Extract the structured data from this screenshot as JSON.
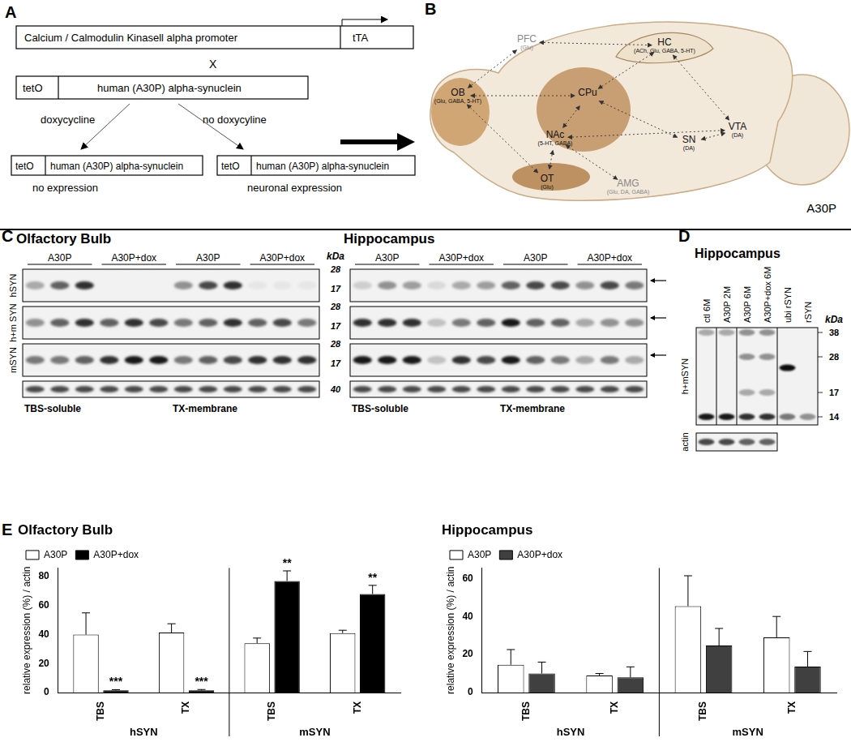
{
  "panel_a": {
    "letter": "A",
    "promoter": "Calcium / Calmodulin Kinasell alpha promoter",
    "transactivator": "tTA",
    "cross": "X",
    "operator": "tetO",
    "transgene": "human (A30P) alpha-synuclein",
    "with_dox": "doxycycline",
    "without_dox": "no doxycyline",
    "off_state": "no expression",
    "on_state": "neuronal expression"
  },
  "panel_b": {
    "letter": "B",
    "caption": "A30P",
    "regions": [
      {
        "label": "PFC",
        "sub": "(Glu)"
      },
      {
        "label": "OB",
        "sub": "(Glu, GABA, 5-HT)"
      },
      {
        "label": "HC",
        "sub": "(ACh, Glu, GABA, 5-HT)"
      },
      {
        "label": "CPu"
      },
      {
        "label": "NAc",
        "sub": "(5-HT, GABA)"
      },
      {
        "label": "OT",
        "sub": "(Glu)"
      },
      {
        "label": "AMG",
        "sub": "(Glu, DA, GABA)"
      },
      {
        "label": "SN",
        "sub": "(DA)"
      },
      {
        "label": "VTA",
        "sub": "(DA)"
      }
    ]
  },
  "panel_c": {
    "letter": "C",
    "kda_title": "kDa",
    "row_labels": [
      "hSYN",
      "h+m SYN",
      "mSYN"
    ],
    "markers": [
      [
        28,
        17
      ],
      [
        28,
        17
      ],
      [
        28,
        17
      ],
      [
        40
      ]
    ],
    "blots": [
      {
        "title": "Olfactory Bulb",
        "lane_groups": [
          "A30P",
          "A30P+dox",
          "A30P",
          "A30P+dox"
        ],
        "fractions": [
          "TBS-soluble",
          "TX-membrane"
        ],
        "intensity": [
          [
            0.3,
            0.6,
            0.8,
            0.0,
            0.0,
            0.0,
            0.4,
            0.7,
            0.8,
            0.05,
            0.05,
            0.05
          ],
          [
            0.4,
            0.6,
            0.8,
            0.6,
            0.8,
            0.7,
            0.5,
            0.6,
            0.8,
            0.6,
            0.7,
            0.5
          ],
          [
            0.5,
            0.5,
            0.6,
            0.8,
            0.9,
            0.9,
            0.5,
            0.6,
            0.7,
            0.8,
            0.8,
            0.8
          ],
          [
            0.7,
            0.7,
            0.7,
            0.7,
            0.7,
            0.7,
            0.7,
            0.7,
            0.7,
            0.7,
            0.7,
            0.7
          ]
        ]
      },
      {
        "title": "Hippocampus",
        "lane_groups": [
          "A30P",
          "A30P+dox",
          "A30P",
          "A30P+dox"
        ],
        "fractions": [
          "TBS-soluble",
          "TX-membrane"
        ],
        "intensity": [
          [
            0.15,
            0.4,
            0.35,
            0.1,
            0.3,
            0.35,
            0.6,
            0.7,
            0.7,
            0.4,
            0.7,
            0.5
          ],
          [
            0.8,
            0.8,
            0.8,
            0.2,
            0.5,
            0.6,
            0.9,
            0.6,
            0.6,
            0.3,
            0.4,
            0.4
          ],
          [
            0.9,
            0.9,
            0.9,
            0.2,
            0.8,
            0.7,
            0.9,
            0.6,
            0.5,
            0.3,
            0.5,
            0.3
          ],
          [
            0.7,
            0.7,
            0.7,
            0.7,
            0.7,
            0.7,
            0.7,
            0.7,
            0.7,
            0.7,
            0.7,
            0.7
          ]
        ]
      }
    ]
  },
  "panel_d": {
    "letter": "D",
    "title": "Hippocampus",
    "kda_title": "kDa",
    "markers": [
      38,
      28,
      17,
      14
    ],
    "lanes": [
      "ctl 6M",
      "A30P 2M",
      "A30P 6M",
      "A30P+dox 6M",
      "ubi rSYN",
      "rSYN"
    ],
    "rows": [
      {
        "label": "h+mSYN",
        "bands": [
          [
            [
              14,
              0.9
            ],
            [
              38,
              0.3
            ]
          ],
          [
            [
              14,
              0.9
            ],
            [
              38,
              0.3
            ]
          ],
          [
            [
              14,
              0.8
            ],
            [
              17,
              0.3
            ],
            [
              28,
              0.4
            ],
            [
              38,
              0.4
            ]
          ],
          [
            [
              14,
              0.8
            ],
            [
              17,
              0.3
            ],
            [
              28,
              0.4
            ],
            [
              38,
              0.4
            ]
          ],
          [
            [
              14,
              0.5
            ],
            [
              24,
              0.95
            ]
          ],
          [
            [
              14,
              0.4
            ]
          ]
        ]
      },
      {
        "label": "actin",
        "intensity": [
          0.7,
          0.7,
          0.6,
          0.6
        ]
      }
    ]
  },
  "panel_e": {
    "letter": "E"
  },
  "chart_data": [
    {
      "type": "bar",
      "title": "Olfactory Bulb",
      "categories": [
        "TBS",
        "TX",
        "TBS",
        "TX"
      ],
      "group_labels": [
        "hSYN",
        "mSYN"
      ],
      "series": [
        {
          "name": "A30P",
          "color": "#ffffff",
          "values": [
            40,
            41.5,
            34,
            41
          ],
          "errors": [
            15,
            6,
            3.6,
            2
          ]
        },
        {
          "name": "A30P+dox",
          "color": "#000000",
          "values": [
            1.5,
            1.5,
            77,
            68
          ],
          "errors": [
            0.5,
            0.6,
            7,
            6
          ]
        }
      ],
      "annotations": [
        {
          "text": "***",
          "series": "A30P+dox",
          "index": 0
        },
        {
          "text": "***",
          "series": "A30P+dox",
          "index": 1
        },
        {
          "text": "**",
          "series": "A30P+dox",
          "index": 2
        },
        {
          "text": "**",
          "series": "A30P+dox",
          "index": 3
        }
      ],
      "y_label": "relative expression (%) / actin",
      "ylim": [
        0,
        86
      ],
      "yticks": [
        0,
        20,
        40,
        60,
        80
      ],
      "grid": false,
      "legend": "top-left"
    },
    {
      "type": "bar",
      "title": "Hippocampus",
      "categories": [
        "TBS",
        "TX",
        "TBS",
        "TX"
      ],
      "group_labels": [
        "hSYN",
        "mSYN"
      ],
      "series": [
        {
          "name": "A30P",
          "color": "#ffffff",
          "values": [
            14.6,
            9,
            45.4,
            29
          ],
          "errors": [
            8,
            1,
            16,
            11
          ]
        },
        {
          "name": "A30P+dox",
          "color": "#404040",
          "values": [
            10,
            8,
            24.7,
            13.6
          ],
          "errors": [
            6,
            5.5,
            9,
            8
          ]
        }
      ],
      "y_label": "relative expression (%) / actin",
      "ylim": [
        0,
        65.5
      ],
      "yticks": [
        0,
        20,
        40,
        60
      ],
      "grid": false,
      "legend": "top-left"
    }
  ]
}
